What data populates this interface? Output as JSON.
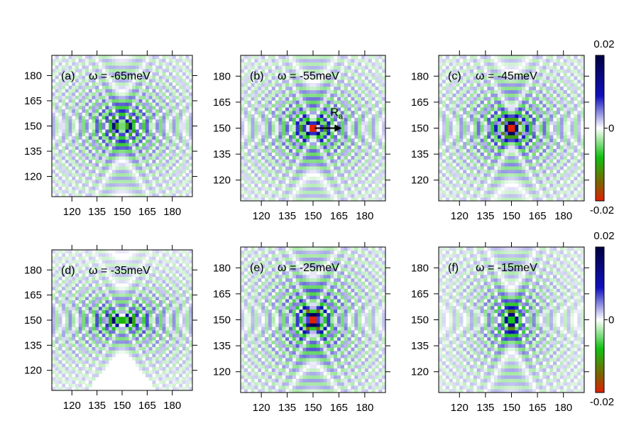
{
  "chart_data": [
    {
      "type": "heatmap",
      "label": "(a)",
      "title": "ω = -65meV",
      "xticks": [
        120,
        135,
        150,
        165,
        180
      ],
      "yticks": [
        120,
        135,
        150,
        165,
        180
      ],
      "xlim": [
        108,
        192
      ],
      "ylim": [
        108,
        192
      ],
      "zlim": [
        -0.02,
        0.02
      ]
    },
    {
      "type": "heatmap",
      "label": "(b)",
      "title": "ω = -55meV",
      "annotation": "R",
      "annotation_sub": "a",
      "xticks": [
        120,
        135,
        150,
        165,
        180
      ],
      "yticks": [
        120,
        135,
        150,
        165,
        180
      ],
      "xlim": [
        108,
        192
      ],
      "ylim": [
        108,
        192
      ],
      "zlim": [
        -0.02,
        0.02
      ]
    },
    {
      "type": "heatmap",
      "label": "(c)",
      "title": "ω = -45meV",
      "xticks": [
        120,
        135,
        150,
        165,
        180
      ],
      "yticks": [
        120,
        135,
        150,
        165,
        180
      ],
      "xlim": [
        108,
        192
      ],
      "ylim": [
        108,
        192
      ],
      "zlim": [
        -0.02,
        0.02
      ]
    },
    {
      "type": "heatmap",
      "label": "(d)",
      "title": "ω = -35meV",
      "xticks": [
        120,
        135,
        150,
        165,
        180
      ],
      "yticks": [
        120,
        135,
        150,
        165,
        180
      ],
      "xlim": [
        108,
        192
      ],
      "ylim": [
        108,
        192
      ],
      "zlim": [
        -0.02,
        0.02
      ]
    },
    {
      "type": "heatmap",
      "label": "(e)",
      "title": "ω = -25meV",
      "xticks": [
        120,
        135,
        150,
        165,
        180
      ],
      "yticks": [
        120,
        135,
        150,
        165,
        180
      ],
      "xlim": [
        108,
        192
      ],
      "ylim": [
        108,
        192
      ],
      "zlim": [
        -0.02,
        0.02
      ]
    },
    {
      "type": "heatmap",
      "label": "(f)",
      "title": "ω = -15meV",
      "xticks": [
        120,
        135,
        150,
        165,
        180
      ],
      "yticks": [
        120,
        135,
        150,
        165,
        180
      ],
      "xlim": [
        108,
        192
      ],
      "ylim": [
        108,
        192
      ],
      "zlim": [
        -0.02,
        0.02
      ]
    }
  ],
  "colorbars": [
    {
      "max_label": "0.02",
      "mid_label": "0",
      "min_label": "-0.02"
    },
    {
      "max_label": "0.02",
      "mid_label": "0",
      "min_label": "-0.02"
    }
  ],
  "colors": {
    "high": "#000040",
    "mid_high": "#1010c0",
    "zero": "#ffffff",
    "mid_low": "#10c010",
    "low": "#e02000"
  }
}
